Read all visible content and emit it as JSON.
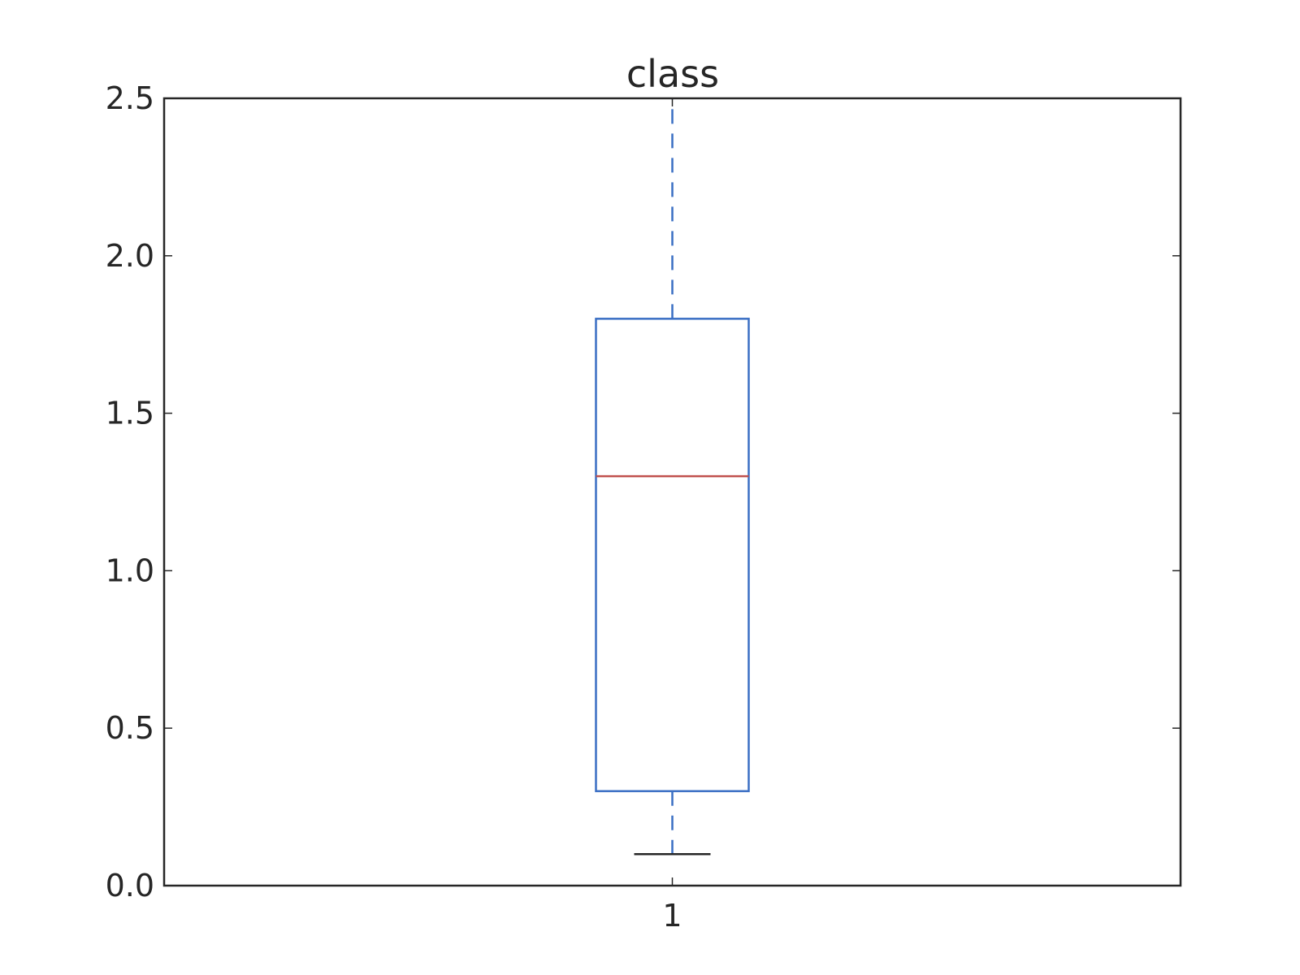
{
  "chart_data": {
    "type": "box",
    "title": "class",
    "xlabel": "",
    "ylabel": "",
    "ylim": [
      0.0,
      2.5
    ],
    "yticks": [
      0.0,
      0.5,
      1.0,
      1.5,
      2.0,
      2.5
    ],
    "ytick_labels": [
      "0.0",
      "0.5",
      "1.0",
      "1.5",
      "2.0",
      "2.5"
    ],
    "categories": [
      "1"
    ],
    "boxes": [
      {
        "category": "1",
        "whisker_low": 0.1,
        "q1": 0.3,
        "median": 1.3,
        "q3": 1.8,
        "whisker_high": 2.5
      }
    ],
    "grid": false,
    "colors": {
      "box": "#3a6fc4",
      "median": "#c0504d",
      "whisker": "#3a6fc4",
      "cap": "#262626",
      "axes": "#262626"
    }
  }
}
